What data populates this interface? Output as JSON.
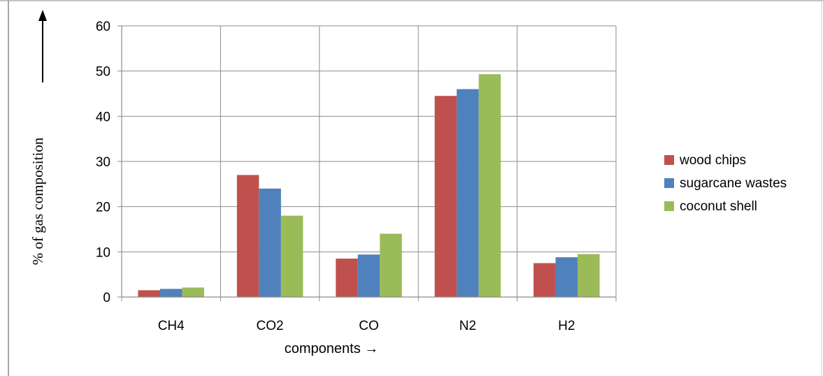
{
  "chart_data": {
    "type": "bar",
    "categories": [
      "CH4",
      "CO2",
      "CO",
      "N2",
      "H2"
    ],
    "series": [
      {
        "name": "wood chips",
        "color": "#c0504d",
        "values": [
          1.5,
          27,
          8.5,
          44.5,
          7.5
        ]
      },
      {
        "name": "sugarcane wastes",
        "color": "#4f81bd",
        "values": [
          1.8,
          24,
          9.4,
          46,
          8.8
        ]
      },
      {
        "name": "coconut shell",
        "color": "#9bbb59",
        "values": [
          2.1,
          18,
          14,
          49.3,
          9.5
        ]
      }
    ],
    "ylim": [
      0,
      60
    ],
    "yticks": [
      0,
      10,
      20,
      30,
      40,
      50,
      60
    ],
    "xlabel": "components  →",
    "ylabel": "% of gas composition",
    "legend_position": "right",
    "grid": true
  }
}
